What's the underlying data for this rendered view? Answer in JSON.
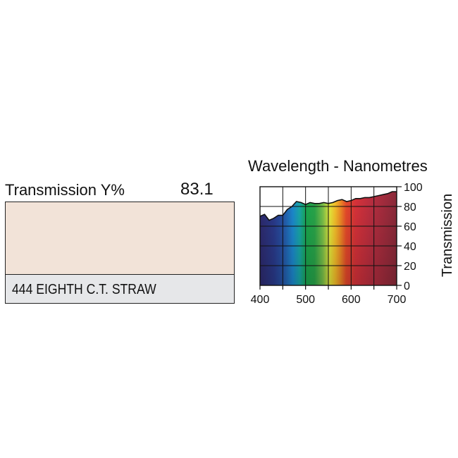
{
  "filter": {
    "transmission_label": "Transmission Y%",
    "transmission_value": "83.1",
    "name": "444 EIGHTH C.T. STRAW",
    "swatch_color": "#f2e3d8",
    "name_bar_color": "#e6e7e9"
  },
  "chart_data": {
    "type": "area",
    "title": "Wavelength - Nanometres",
    "xlabel": "",
    "ylabel": "Transmission",
    "xlim": [
      400,
      700
    ],
    "ylim": [
      0,
      100
    ],
    "x_ticks": [
      "400",
      "500",
      "600",
      "700"
    ],
    "y_ticks": [
      "0",
      "20",
      "40",
      "60",
      "80",
      "100"
    ],
    "grid": true,
    "series": [
      {
        "x": [
          400,
          410,
          420,
          430,
          440,
          450,
          460,
          470,
          480,
          490,
          500,
          510,
          520,
          530,
          540,
          550,
          560,
          570,
          580,
          590,
          600,
          610,
          620,
          630,
          640,
          650,
          660,
          670,
          680,
          690,
          700
        ],
        "y": [
          70,
          72,
          66,
          68,
          71,
          71,
          77,
          80,
          85,
          84,
          82,
          84,
          83,
          83,
          84,
          83,
          84,
          86,
          87,
          85,
          86,
          88,
          88,
          89,
          89,
          90,
          91,
          92,
          93,
          95,
          95
        ]
      }
    ]
  }
}
